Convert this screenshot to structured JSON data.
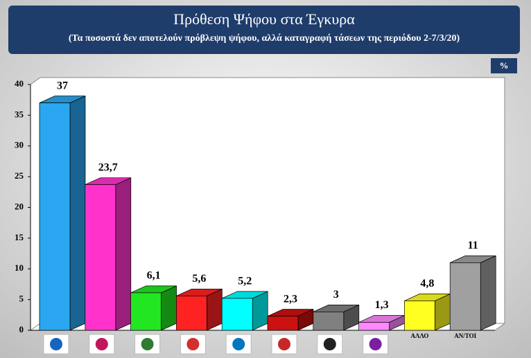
{
  "chart_data": {
    "type": "bar3d",
    "title": "Πρόθεση Ψήφου στα Έγκυρα",
    "subtitle": "(Τα ποσοστά δεν αποτελούν πρόβλεψη ψήφου, αλλά καταγραφή τάσεων της περιόδου 2-7/3/20)",
    "unit": "%",
    "categories": [
      null,
      null,
      null,
      null,
      null,
      null,
      null,
      null,
      "ΑΛΛΟ",
      "ΑΝ/ΤΟΙ"
    ],
    "values": [
      37,
      23.7,
      6.1,
      5.6,
      5.2,
      2.3,
      3,
      1.3,
      4.8,
      11
    ],
    "value_labels": [
      "37",
      "23,7",
      "6,1",
      "5,6",
      "5,2",
      "2,3",
      "3",
      "1,3",
      "4,8",
      "11"
    ],
    "colors": [
      "#2aa7f0",
      "#ff33cc",
      "#22e622",
      "#ff2222",
      "#00ffff",
      "#cc1111",
      "#808080",
      "#ff88ff",
      "#ffff22",
      "#a0a0a0"
    ],
    "ylim": [
      0,
      40
    ],
    "yticks": [
      0,
      5,
      10,
      15,
      20,
      25,
      30,
      35,
      40
    ]
  }
}
